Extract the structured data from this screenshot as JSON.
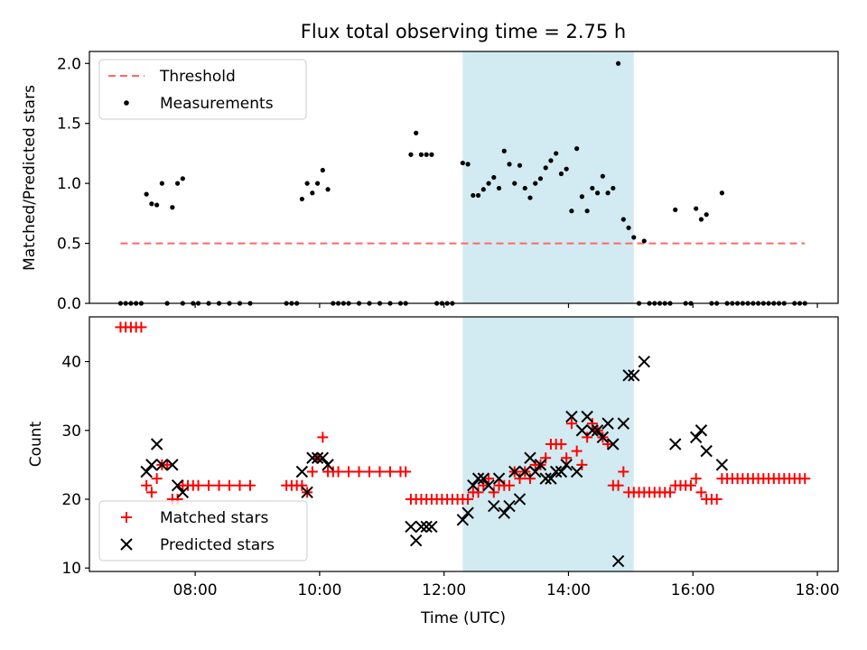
{
  "chart_data": {
    "title": "Flux total observing time = 2.75 h",
    "shaded_interval": {
      "start": "12:18",
      "end": "15:03",
      "color": "#add8e6"
    },
    "xlabel": "Time (UTC)",
    "x_ticks": [
      {
        "time": "08:00",
        "label": "08:00"
      },
      {
        "time": "10:00",
        "label": "10:00"
      },
      {
        "time": "12:00",
        "label": "12:00"
      },
      {
        "time": "14:00",
        "label": "14:00"
      },
      {
        "time": "16:00",
        "label": "16:00"
      },
      {
        "time": "18:00",
        "label": "18:00"
      }
    ],
    "x_range": [
      "06:18",
      "18:20"
    ],
    "top": {
      "type": "scatter",
      "ylabel": "Matched/Predicted stars",
      "ylim": [
        0,
        2.1
      ],
      "y_ticks": [
        "0.0",
        "0.5",
        "1.0",
        "1.5",
        "2.0"
      ],
      "threshold": {
        "label": "Threshold",
        "value": 0.5,
        "from": "06:48",
        "to": "17:48",
        "color": "#ff6666"
      },
      "measurements_label": "Measurements",
      "measurements_color": "#000000",
      "measurements": [
        [
          "06:48",
          0
        ],
        [
          "06:53",
          0
        ],
        [
          "06:58",
          0
        ],
        [
          "07:03",
          0
        ],
        [
          "07:08",
          0
        ],
        [
          "07:13",
          0.91
        ],
        [
          "07:18",
          0.83
        ],
        [
          "07:23",
          0.82
        ],
        [
          "07:28",
          1.0
        ],
        [
          "07:38",
          0.8
        ],
        [
          "07:33",
          0
        ],
        [
          "07:48",
          0
        ],
        [
          "07:43",
          1.0
        ],
        [
          "07:48",
          1.04
        ],
        [
          "07:58",
          0
        ],
        [
          "08:03",
          0
        ],
        [
          "08:13",
          0
        ],
        [
          "08:23",
          0
        ],
        [
          "08:33",
          0
        ],
        [
          "08:43",
          0
        ],
        [
          "08:53",
          0
        ],
        [
          "09:28",
          0
        ],
        [
          "09:33",
          0
        ],
        [
          "09:38",
          0
        ],
        [
          "09:43",
          0.87
        ],
        [
          "09:48",
          1.0
        ],
        [
          "09:53",
          0.92
        ],
        [
          "09:58",
          1.0
        ],
        [
          "10:03",
          1.11
        ],
        [
          "10:08",
          0.95
        ],
        [
          "10:13",
          0
        ],
        [
          "10:18",
          0
        ],
        [
          "10:23",
          0
        ],
        [
          "10:28",
          0
        ],
        [
          "10:38",
          0
        ],
        [
          "10:48",
          0
        ],
        [
          "10:58",
          0
        ],
        [
          "11:08",
          0
        ],
        [
          "11:18",
          0
        ],
        [
          "11:23",
          0
        ],
        [
          "11:28",
          1.24
        ],
        [
          "11:33",
          1.42
        ],
        [
          "11:38",
          1.24
        ],
        [
          "11:43",
          1.24
        ],
        [
          "11:48",
          1.24
        ],
        [
          "11:53",
          0
        ],
        [
          "11:58",
          0
        ],
        [
          "12:03",
          0
        ],
        [
          "12:08",
          0
        ],
        [
          "12:18",
          1.17
        ],
        [
          "12:23",
          1.16
        ],
        [
          "12:28",
          0.9
        ],
        [
          "12:33",
          0.9
        ],
        [
          "12:38",
          0.95
        ],
        [
          "12:43",
          1.0
        ],
        [
          "12:48",
          1.05
        ],
        [
          "12:53",
          0.96
        ],
        [
          "12:58",
          1.27
        ],
        [
          "13:03",
          1.16
        ],
        [
          "13:08",
          1.0
        ],
        [
          "13:13",
          1.15
        ],
        [
          "13:18",
          0.96
        ],
        [
          "13:23",
          0.88
        ],
        [
          "13:28",
          1.0
        ],
        [
          "13:33",
          1.04
        ],
        [
          "13:38",
          1.13
        ],
        [
          "13:43",
          1.19
        ],
        [
          "13:48",
          1.25
        ],
        [
          "13:53",
          1.08
        ],
        [
          "13:58",
          1.12
        ],
        [
          "14:03",
          0.77
        ],
        [
          "14:08",
          1.29
        ],
        [
          "14:13",
          0.89
        ],
        [
          "14:18",
          0.77
        ],
        [
          "14:23",
          0.96
        ],
        [
          "14:28",
          0.92
        ],
        [
          "14:33",
          1.06
        ],
        [
          "14:38",
          0.92
        ],
        [
          "14:43",
          0.96
        ],
        [
          "14:48",
          2.0
        ],
        [
          "14:53",
          0.7
        ],
        [
          "14:58",
          0.63
        ],
        [
          "15:03",
          0.55
        ],
        [
          "15:13",
          0.52
        ],
        [
          "15:08",
          0
        ],
        [
          "15:18",
          0
        ],
        [
          "15:23",
          0
        ],
        [
          "15:28",
          0
        ],
        [
          "15:33",
          0
        ],
        [
          "15:38",
          0
        ],
        [
          "15:43",
          0.78
        ],
        [
          "15:53",
          0
        ],
        [
          "15:58",
          0
        ],
        [
          "16:03",
          0.79
        ],
        [
          "16:08",
          0.7
        ],
        [
          "16:13",
          0.74
        ],
        [
          "16:18",
          0
        ],
        [
          "16:23",
          0
        ],
        [
          "16:28",
          0.92
        ],
        [
          "16:33",
          0
        ],
        [
          "16:38",
          0
        ],
        [
          "16:43",
          0
        ],
        [
          "16:48",
          0
        ],
        [
          "16:53",
          0
        ],
        [
          "16:58",
          0
        ],
        [
          "17:03",
          0
        ],
        [
          "17:08",
          0
        ],
        [
          "17:13",
          0
        ],
        [
          "17:18",
          0
        ],
        [
          "17:23",
          0
        ],
        [
          "17:28",
          0
        ],
        [
          "17:38",
          0
        ],
        [
          "17:43",
          0
        ],
        [
          "17:48",
          0
        ]
      ]
    },
    "bottom": {
      "type": "scatter",
      "ylabel": "Count",
      "ylim": [
        9.5,
        46.5
      ],
      "y_ticks": [
        "10",
        "20",
        "30",
        "40"
      ],
      "series": [
        {
          "name": "Matched stars",
          "marker": "+",
          "color": "#ff0000",
          "points": [
            [
              "06:48",
              45
            ],
            [
              "06:53",
              45
            ],
            [
              "06:58",
              45
            ],
            [
              "07:03",
              45
            ],
            [
              "07:08",
              45
            ],
            [
              "07:13",
              22
            ],
            [
              "07:18",
              21
            ],
            [
              "07:23",
              23
            ],
            [
              "07:28",
              25
            ],
            [
              "07:33",
              25
            ],
            [
              "07:38",
              20
            ],
            [
              "07:43",
              20
            ],
            [
              "07:48",
              22
            ],
            [
              "07:53",
              22
            ],
            [
              "07:58",
              22
            ],
            [
              "08:03",
              22
            ],
            [
              "08:13",
              22
            ],
            [
              "08:23",
              22
            ],
            [
              "08:33",
              22
            ],
            [
              "08:43",
              22
            ],
            [
              "08:53",
              22
            ],
            [
              "09:28",
              22
            ],
            [
              "09:33",
              22
            ],
            [
              "09:38",
              22
            ],
            [
              "09:43",
              22
            ],
            [
              "09:48",
              21
            ],
            [
              "09:53",
              24
            ],
            [
              "09:58",
              26
            ],
            [
              "10:03",
              29
            ],
            [
              "10:08",
              24
            ],
            [
              "10:13",
              24
            ],
            [
              "10:18",
              24
            ],
            [
              "10:28",
              24
            ],
            [
              "10:38",
              24
            ],
            [
              "10:48",
              24
            ],
            [
              "10:58",
              24
            ],
            [
              "11:08",
              24
            ],
            [
              "11:18",
              24
            ],
            [
              "11:23",
              24
            ],
            [
              "11:28",
              20
            ],
            [
              "11:33",
              20
            ],
            [
              "11:38",
              20
            ],
            [
              "11:43",
              20
            ],
            [
              "11:48",
              20
            ],
            [
              "11:53",
              20
            ],
            [
              "11:58",
              20
            ],
            [
              "12:03",
              20
            ],
            [
              "12:08",
              20
            ],
            [
              "12:13",
              20
            ],
            [
              "12:18",
              20
            ],
            [
              "12:23",
              20
            ],
            [
              "12:28",
              21
            ],
            [
              "12:33",
              21
            ],
            [
              "12:38",
              22
            ],
            [
              "12:43",
              23
            ],
            [
              "12:48",
              21
            ],
            [
              "12:53",
              22
            ],
            [
              "12:58",
              22
            ],
            [
              "13:03",
              22
            ],
            [
              "13:08",
              24
            ],
            [
              "13:13",
              23
            ],
            [
              "13:18",
              24
            ],
            [
              "13:23",
              23
            ],
            [
              "13:28",
              25
            ],
            [
              "13:33",
              25
            ],
            [
              "13:38",
              26
            ],
            [
              "13:43",
              28
            ],
            [
              "13:48",
              28
            ],
            [
              "13:53",
              28
            ],
            [
              "13:58",
              26
            ],
            [
              "14:03",
              31
            ],
            [
              "14:08",
              27
            ],
            [
              "14:13",
              25
            ],
            [
              "14:18",
              29
            ],
            [
              "14:23",
              31
            ],
            [
              "14:28",
              30
            ],
            [
              "14:33",
              29
            ],
            [
              "14:38",
              28
            ],
            [
              "14:43",
              22
            ],
            [
              "14:48",
              22
            ],
            [
              "14:53",
              24
            ],
            [
              "14:58",
              21
            ],
            [
              "15:03",
              21
            ],
            [
              "15:08",
              21
            ],
            [
              "15:13",
              21
            ],
            [
              "15:18",
              21
            ],
            [
              "15:23",
              21
            ],
            [
              "15:28",
              21
            ],
            [
              "15:33",
              21
            ],
            [
              "15:38",
              21
            ],
            [
              "15:43",
              22
            ],
            [
              "15:48",
              22
            ],
            [
              "15:53",
              22
            ],
            [
              "15:58",
              22
            ],
            [
              "16:03",
              23
            ],
            [
              "16:08",
              21
            ],
            [
              "16:13",
              20
            ],
            [
              "16:18",
              20
            ],
            [
              "16:23",
              20
            ],
            [
              "16:28",
              23
            ],
            [
              "16:33",
              23
            ],
            [
              "16:38",
              23
            ],
            [
              "16:43",
              23
            ],
            [
              "16:48",
              23
            ],
            [
              "16:53",
              23
            ],
            [
              "16:58",
              23
            ],
            [
              "17:03",
              23
            ],
            [
              "17:08",
              23
            ],
            [
              "17:13",
              23
            ],
            [
              "17:18",
              23
            ],
            [
              "17:23",
              23
            ],
            [
              "17:28",
              23
            ],
            [
              "17:33",
              23
            ],
            [
              "17:38",
              23
            ],
            [
              "17:43",
              23
            ],
            [
              "17:48",
              23
            ]
          ]
        },
        {
          "name": "Predicted stars",
          "marker": "x",
          "color": "#000000",
          "points": [
            [
              "07:13",
              24
            ],
            [
              "07:18",
              25
            ],
            [
              "07:23",
              28
            ],
            [
              "07:28",
              25
            ],
            [
              "07:38",
              25
            ],
            [
              "07:43",
              22
            ],
            [
              "07:48",
              21
            ],
            [
              "09:43",
              24
            ],
            [
              "09:48",
              21
            ],
            [
              "09:53",
              26
            ],
            [
              "09:58",
              26
            ],
            [
              "10:03",
              26
            ],
            [
              "10:08",
              25
            ],
            [
              "11:28",
              16
            ],
            [
              "11:33",
              14
            ],
            [
              "11:38",
              16
            ],
            [
              "11:43",
              16
            ],
            [
              "11:48",
              16
            ],
            [
              "12:18",
              17
            ],
            [
              "12:23",
              18
            ],
            [
              "12:28",
              22
            ],
            [
              "12:33",
              23
            ],
            [
              "12:38",
              23
            ],
            [
              "12:43",
              22
            ],
            [
              "12:48",
              19
            ],
            [
              "12:53",
              23
            ],
            [
              "12:58",
              18
            ],
            [
              "13:03",
              19
            ],
            [
              "13:08",
              24
            ],
            [
              "13:13",
              20
            ],
            [
              "13:18",
              24
            ],
            [
              "13:23",
              26
            ],
            [
              "13:28",
              24
            ],
            [
              "13:33",
              25
            ],
            [
              "13:38",
              23
            ],
            [
              "13:43",
              23
            ],
            [
              "13:48",
              24
            ],
            [
              "13:53",
              24
            ],
            [
              "13:58",
              25
            ],
            [
              "14:03",
              32
            ],
            [
              "14:08",
              24
            ],
            [
              "14:13",
              30
            ],
            [
              "14:18",
              32
            ],
            [
              "14:23",
              30
            ],
            [
              "14:28",
              30
            ],
            [
              "14:33",
              29
            ],
            [
              "14:38",
              31
            ],
            [
              "14:43",
              28
            ],
            [
              "14:48",
              11
            ],
            [
              "14:53",
              31
            ],
            [
              "14:58",
              38
            ],
            [
              "15:03",
              38
            ],
            [
              "15:13",
              40
            ],
            [
              "15:43",
              28
            ],
            [
              "16:03",
              29
            ],
            [
              "16:08",
              30
            ],
            [
              "16:13",
              27
            ],
            [
              "16:28",
              25
            ]
          ]
        }
      ]
    }
  }
}
